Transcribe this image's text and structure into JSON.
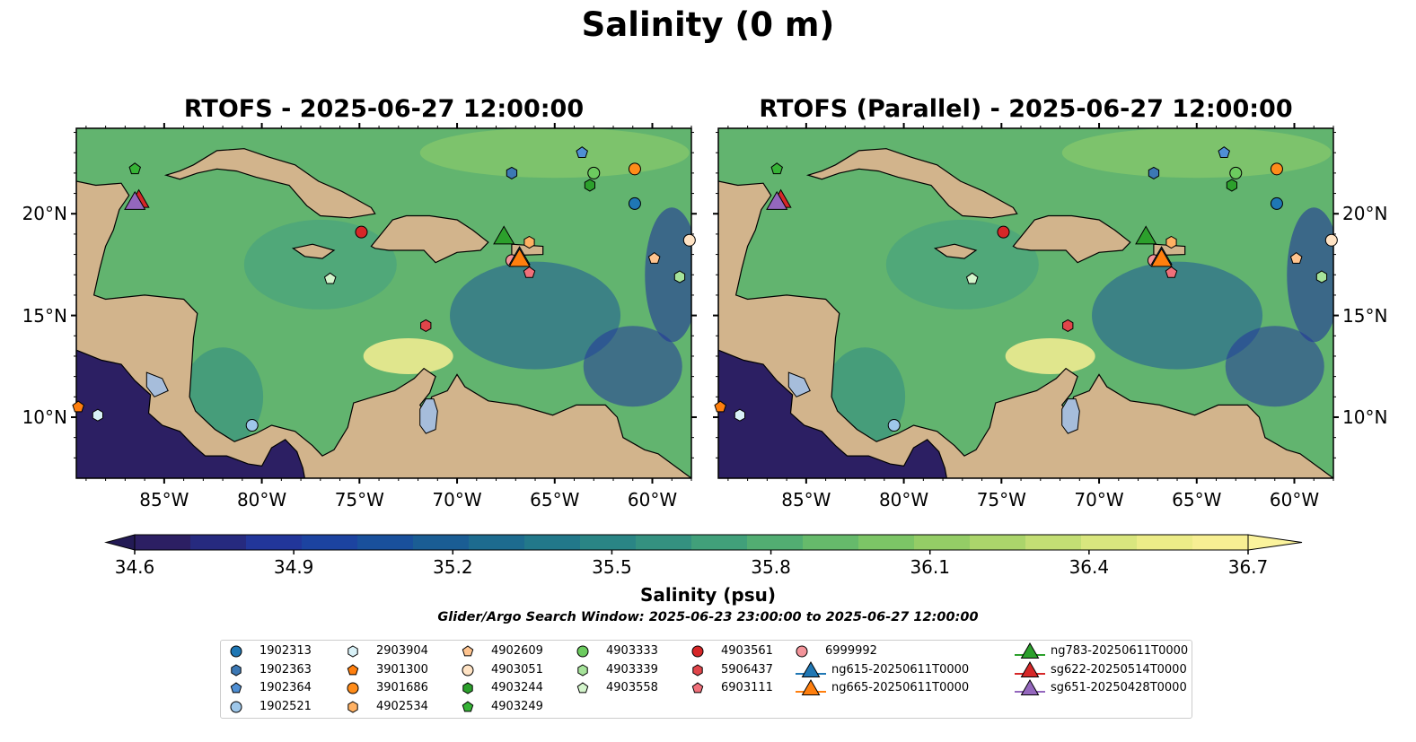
{
  "figure": {
    "suptitle": "Salinity (0 m)",
    "panels": [
      {
        "title": "RTOFS - 2025-06-27 12:00:00"
      },
      {
        "title": "RTOFS (Parallel) - 2025-06-27 12:00:00"
      }
    ],
    "lon_ticks": [
      "85°W",
      "80°W",
      "75°W",
      "70°W",
      "65°W",
      "60°W"
    ],
    "lat_ticks": [
      "20°N",
      "15°N",
      "10°N"
    ],
    "extent": {
      "lon": [
        -89.5,
        -58.0
      ],
      "lat": [
        7.0,
        24.2
      ]
    },
    "colorbar": {
      "label": "Salinity (psu)",
      "ticks": [
        "34.6",
        "34.9",
        "35.2",
        "35.5",
        "35.8",
        "36.1",
        "36.4",
        "36.7"
      ],
      "vmin": 34.6,
      "vmax": 36.7,
      "colors": [
        "#2c1f63",
        "#262a7f",
        "#22369a",
        "#1c43a0",
        "#19509c",
        "#1a5d94",
        "#1d6b8f",
        "#22788a",
        "#2a8585",
        "#349180",
        "#41a07a",
        "#52ad72",
        "#66ba6b",
        "#7cc566",
        "#94cd66",
        "#abd56b",
        "#c3de74",
        "#d9e67e",
        "#ecec88",
        "#f7ef93"
      ]
    },
    "search_window": "Glider/Argo Search Window: 2025-06-23 23:00:00 to 2025-06-27 12:00:00",
    "colors": {
      "land": "#d2b48c",
      "pacific": "#2c1f63",
      "lake": "#a6bddb",
      "sea_mid": "#3c9a86",
      "sea_hi": "#8fcd6a"
    }
  },
  "legend": [
    {
      "label": "1902313",
      "marker": "circle",
      "color": "#1f77b4"
    },
    {
      "label": "1902363",
      "marker": "hexagon",
      "color": "#3c78b4"
    },
    {
      "label": "1902364",
      "marker": "pentagon",
      "color": "#4f8fd4"
    },
    {
      "label": "1902521",
      "marker": "circle",
      "color": "#9ec7ea"
    },
    {
      "label": "2903904",
      "marker": "hexagon",
      "color": "#d8f1f7"
    },
    {
      "label": "3901300",
      "marker": "pentagon",
      "color": "#ff7f0e"
    },
    {
      "label": "3901686",
      "marker": "circle",
      "color": "#ff8c1a"
    },
    {
      "label": "4902534",
      "marker": "hexagon",
      "color": "#ffb163"
    },
    {
      "label": "4902609",
      "marker": "pentagon",
      "color": "#ffc48f"
    },
    {
      "label": "4903051",
      "marker": "circle",
      "color": "#ffe3c4"
    },
    {
      "label": "4903244",
      "marker": "hexagon",
      "color": "#2ca02c"
    },
    {
      "label": "4903249",
      "marker": "pentagon",
      "color": "#36b336"
    },
    {
      "label": "4903333",
      "marker": "circle",
      "color": "#6ccb5f"
    },
    {
      "label": "4903339",
      "marker": "hexagon",
      "color": "#a6e39a"
    },
    {
      "label": "4903558",
      "marker": "pentagon",
      "color": "#d4f5cc"
    },
    {
      "label": "4903561",
      "marker": "circle",
      "color": "#d62728"
    },
    {
      "label": "5906437",
      "marker": "hexagon",
      "color": "#e0454a"
    },
    {
      "label": "6903111",
      "marker": "pentagon",
      "color": "#f0707a"
    },
    {
      "label": "6999992",
      "marker": "circle",
      "color": "#f3949a"
    },
    {
      "label": "ng615-20250611T0000",
      "marker": "triangle",
      "color": "#1f77b4"
    },
    {
      "label": "ng665-20250611T0000",
      "marker": "triangle",
      "color": "#ff7f0e"
    },
    {
      "label": "ng783-20250611T0000",
      "marker": "triangle",
      "color": "#2ca02c"
    },
    {
      "label": "sg622-20250514T0000",
      "marker": "triangle",
      "color": "#d62728"
    },
    {
      "label": "sg651-20250428T0000",
      "marker": "triangle",
      "color": "#9467bd"
    }
  ],
  "argo_floats": [
    {
      "label": "1902313",
      "lon": -60.9,
      "lat": 20.5
    },
    {
      "label": "1902363",
      "lon": -67.2,
      "lat": 22.0
    },
    {
      "label": "1902364",
      "lon": -63.6,
      "lat": 23.0
    },
    {
      "label": "1902521",
      "lon": -80.5,
      "lat": 9.6
    },
    {
      "label": "2903904",
      "lon": -88.4,
      "lat": 10.1
    },
    {
      "label": "3901300",
      "lon": -89.4,
      "lat": 10.5
    },
    {
      "label": "3901686",
      "lon": -60.9,
      "lat": 22.2
    },
    {
      "label": "4902534",
      "lon": -66.3,
      "lat": 18.6
    },
    {
      "label": "4902609",
      "lon": -59.9,
      "lat": 17.8
    },
    {
      "label": "4903051",
      "lon": -58.1,
      "lat": 18.7
    },
    {
      "label": "4903244",
      "lon": -63.2,
      "lat": 21.4
    },
    {
      "label": "4903249",
      "lon": -86.5,
      "lat": 22.2
    },
    {
      "label": "4903333",
      "lon": -63.0,
      "lat": 22.0
    },
    {
      "label": "4903339",
      "lon": -58.6,
      "lat": 16.9
    },
    {
      "label": "4903558",
      "lon": -76.5,
      "lat": 16.8
    },
    {
      "label": "4903561",
      "lon": -74.9,
      "lat": 19.1
    },
    {
      "label": "5906437",
      "lon": -71.6,
      "lat": 14.5
    },
    {
      "label": "6903111",
      "lon": -66.3,
      "lat": 17.1
    },
    {
      "label": "6999992",
      "lon": -67.2,
      "lat": 17.7
    }
  ],
  "gliders": [
    {
      "label": "ng783-20250611T0000",
      "lon": -67.6,
      "lat": 18.8
    },
    {
      "label": "ng615-20250611T0000",
      "lon": -66.8,
      "lat": 17.8
    },
    {
      "label": "ng665-20250611T0000",
      "lon": -66.8,
      "lat": 17.7
    },
    {
      "label": "sg622-20250514T0000",
      "lon": -86.3,
      "lat": 20.6
    },
    {
      "label": "sg651-20250428T0000",
      "lon": -86.5,
      "lat": 20.5
    }
  ]
}
